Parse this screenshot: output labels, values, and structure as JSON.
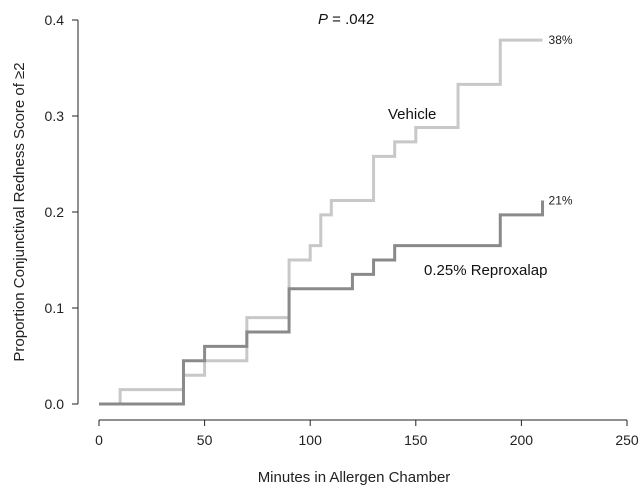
{
  "chart_data": {
    "type": "line",
    "step": true,
    "title": "",
    "xlabel": "Minutes in Allergen Chamber",
    "ylabel": "Proportion Conjunctival Redness Score of ≥2",
    "xlim": [
      0,
      250
    ],
    "ylim": [
      0,
      0.4
    ],
    "xticks": [
      0,
      50,
      100,
      150,
      200,
      250
    ],
    "xtick_labels": [
      "0",
      "50",
      "100",
      "150",
      "200",
      "250"
    ],
    "yticks": [
      0,
      0.1,
      0.2,
      0.3,
      0.4
    ],
    "ytick_labels": [
      "0.0",
      "0.1",
      "0.2",
      "0.3",
      "0.4"
    ],
    "grid": false,
    "legend": "none",
    "annotation": {
      "p_symbol": "P",
      "p_value": " = .042"
    },
    "series": [
      {
        "name": "Vehicle",
        "color": "#c8c8c8",
        "end_label": "38%",
        "points": [
          [
            0,
            0
          ],
          [
            10,
            0.015
          ],
          [
            40,
            0.03
          ],
          [
            50,
            0.045
          ],
          [
            70,
            0.09
          ],
          [
            90,
            0.15
          ],
          [
            100,
            0.165
          ],
          [
            105,
            0.197
          ],
          [
            110,
            0.212
          ],
          [
            130,
            0.258
          ],
          [
            140,
            0.273
          ],
          [
            150,
            0.288
          ],
          [
            170,
            0.333
          ],
          [
            190,
            0.379
          ],
          [
            210,
            0.379
          ]
        ]
      },
      {
        "name": "0.25% Reproxalap",
        "color": "#8a8a8a",
        "end_label": "21%",
        "points": [
          [
            0,
            0
          ],
          [
            40,
            0.045
          ],
          [
            50,
            0.06
          ],
          [
            70,
            0.075
          ],
          [
            90,
            0.12
          ],
          [
            120,
            0.135
          ],
          [
            130,
            0.15
          ],
          [
            140,
            0.165
          ],
          [
            190,
            0.197
          ],
          [
            210,
            0.212
          ]
        ]
      }
    ]
  }
}
